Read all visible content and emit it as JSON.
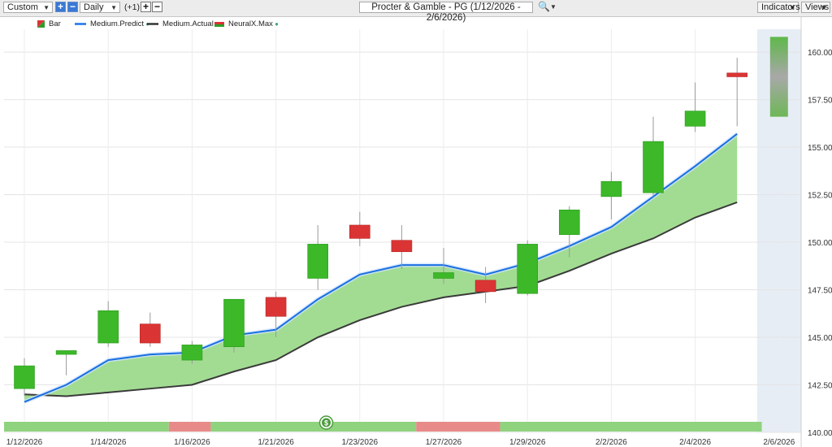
{
  "toolbar": {
    "range_value": "Custom",
    "interval_value": "Daily",
    "offset_label": "(+1)",
    "title": "Procter & Gamble - PG (1/12/2026 - 2/6/2026)",
    "indicators_label": "Indicators",
    "views_label": "Views",
    "plus_glyph": "+",
    "minus_glyph": "−"
  },
  "legend": [
    {
      "label": "Bar",
      "color": "#2e9c2a"
    },
    {
      "label": "Medium.Predict",
      "color": "#1a73e8"
    },
    {
      "label": "Medium.Actual",
      "color": "#333333"
    },
    {
      "label": "NeuralX.Max",
      "color": "#2e9c2a"
    }
  ],
  "colors": {
    "up": "#3cb829",
    "down": "#db3434",
    "predict_line": "#1a6fe0",
    "actual_line": "#3a3a3a",
    "band_fill": "#a2dc92",
    "forecast_bg": "#e6edf5",
    "strip_green": "#8fd37f",
    "strip_red": "#e88a8a"
  },
  "chart_data": {
    "type": "candlestick",
    "ylim": [
      140,
      161.2
    ],
    "yticks": [
      "140.00",
      "142.50",
      "145.00",
      "147.50",
      "150.00",
      "152.50",
      "155.00",
      "157.50",
      "160.00"
    ],
    "xtick_labels": [
      {
        "i": 0,
        "label": "1/12/2026"
      },
      {
        "i": 2,
        "label": "1/14/2026"
      },
      {
        "i": 4,
        "label": "1/16/2026"
      },
      {
        "i": 6,
        "label": "1/21/2026"
      },
      {
        "i": 8,
        "label": "1/23/2026"
      },
      {
        "i": 10,
        "label": "1/27/2026"
      },
      {
        "i": 12,
        "label": "1/29/2026"
      },
      {
        "i": 14,
        "label": "2/2/2026"
      },
      {
        "i": 16,
        "label": "2/4/2026"
      },
      {
        "i": 18,
        "label": "2/6/2026"
      }
    ],
    "candles": [
      {
        "o": 142.3,
        "h": 143.9,
        "l": 141.9,
        "c": 143.5
      },
      {
        "o": 144.1,
        "h": 144.3,
        "l": 143.0,
        "c": 144.3
      },
      {
        "o": 144.7,
        "h": 146.9,
        "l": 144.5,
        "c": 146.4
      },
      {
        "o": 145.7,
        "h": 146.3,
        "l": 144.5,
        "c": 144.7
      },
      {
        "o": 143.8,
        "h": 144.8,
        "l": 143.6,
        "c": 144.6
      },
      {
        "o": 144.5,
        "h": 147.0,
        "l": 144.2,
        "c": 147.0
      },
      {
        "o": 147.1,
        "h": 147.4,
        "l": 145.0,
        "c": 146.1
      },
      {
        "o": 148.1,
        "h": 150.9,
        "l": 147.5,
        "c": 149.9
      },
      {
        "o": 150.9,
        "h": 151.6,
        "l": 149.8,
        "c": 150.2
      },
      {
        "o": 150.1,
        "h": 150.9,
        "l": 148.6,
        "c": 149.5
      },
      {
        "o": 148.1,
        "h": 149.7,
        "l": 147.8,
        "c": 148.4
      },
      {
        "o": 148.0,
        "h": 148.7,
        "l": 146.8,
        "c": 147.4
      },
      {
        "o": 147.3,
        "h": 150.1,
        "l": 147.2,
        "c": 149.9
      },
      {
        "o": 150.4,
        "h": 151.9,
        "l": 149.2,
        "c": 151.7
      },
      {
        "o": 152.4,
        "h": 153.7,
        "l": 151.2,
        "c": 153.2
      },
      {
        "o": 152.6,
        "h": 156.6,
        "l": 152.4,
        "c": 155.3
      },
      {
        "o": 156.1,
        "h": 158.4,
        "l": 155.8,
        "c": 156.9
      },
      {
        "o": 158.9,
        "h": 159.7,
        "l": 156.1,
        "c": 158.7
      }
    ],
    "predict": [
      141.6,
      142.5,
      143.8,
      144.1,
      144.2,
      145.1,
      145.4,
      147.0,
      148.3,
      148.8,
      148.8,
      148.3,
      148.9,
      149.8,
      150.8,
      152.4,
      154.0,
      155.7
    ],
    "actual": [
      142.0,
      141.9,
      142.1,
      142.3,
      142.5,
      143.2,
      143.8,
      145.0,
      145.9,
      146.6,
      147.1,
      147.4,
      147.7,
      148.5,
      149.4,
      150.2,
      151.3,
      152.1
    ],
    "forecast": {
      "i": 18,
      "low": 156.6,
      "high": 160.8
    },
    "signal_strip": [
      {
        "from": 0,
        "to": 3.95,
        "signal": "green"
      },
      {
        "from": 3.95,
        "to": 4.95,
        "signal": "red"
      },
      {
        "from": 4.95,
        "to": 9.85,
        "signal": "green"
      },
      {
        "from": 9.85,
        "to": 11.85,
        "signal": "red"
      },
      {
        "from": 11.85,
        "to": 17.55,
        "signal": "green"
      }
    ],
    "strip_marker": {
      "i": 7.2,
      "symbol": "$"
    }
  }
}
